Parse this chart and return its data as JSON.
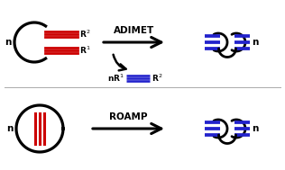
{
  "bg_color": "#ffffff",
  "black": "#000000",
  "red": "#cc0000",
  "blue": "#2222cc",
  "label_adimet": "ADIMET",
  "label_roamp": "ROAMP",
  "label_n": "n",
  "label_R1": "R$^1$",
  "label_R2": "R$^2$",
  "label_nR1": "nR$^1$",
  "lw_circle": 2.0,
  "lw_triple": 2.2,
  "figw": 3.16,
  "figh": 1.89,
  "dpi": 100
}
